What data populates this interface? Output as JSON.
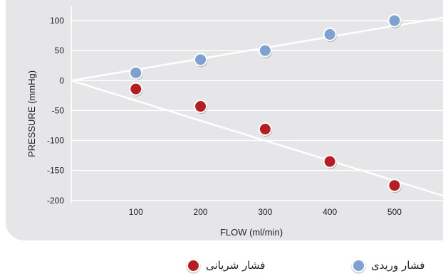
{
  "chart_data": {
    "type": "scatter",
    "xlabel": "FLOW  (ml/min)",
    "ylabel": "PRESSURE  (mmHg)",
    "xlim": [
      0,
      575
    ],
    "ylim": [
      -205,
      125
    ],
    "x_ticks": [
      "100",
      "200",
      "300",
      "400",
      "500"
    ],
    "y_ticks": [
      "100",
      "50",
      "0",
      "-50",
      "-100",
      "-150",
      "-200"
    ],
    "grid": "horizontal",
    "legend_position": "bottom",
    "series": [
      {
        "name": "فشار وریدی",
        "color": "#7ea1cf",
        "x": [
          100,
          200,
          300,
          400,
          500
        ],
        "y": [
          13,
          35,
          50,
          77,
          100
        ],
        "trend": {
          "x": [
            0,
            575
          ],
          "y": [
            0,
            105
          ]
        }
      },
      {
        "name": "فشار شریانی",
        "color": "#b51f24",
        "x": [
          100,
          200,
          300,
          400,
          500
        ],
        "y": [
          -14,
          -43,
          -81,
          -135,
          -175
        ],
        "trend": {
          "x": [
            0,
            575
          ],
          "y": [
            0,
            -192
          ]
        }
      }
    ]
  }
}
